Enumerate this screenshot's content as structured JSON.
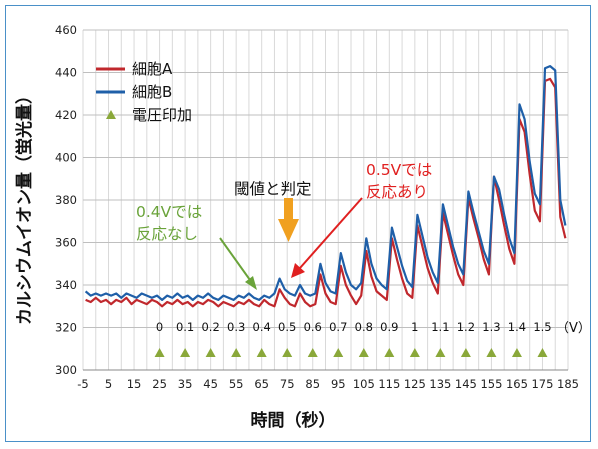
{
  "chart_data": {
    "type": "line",
    "title": "",
    "xlabel": "時間（秒）",
    "ylabel": "カルシウムイオン量（蛍光量）",
    "xlim": [
      -5,
      185
    ],
    "ylim": [
      300,
      460
    ],
    "grid": true,
    "legend_position": "top-left",
    "x_ticks": [
      "-5",
      "5",
      "15",
      "25",
      "35",
      "45",
      "55",
      "65",
      "75",
      "85",
      "95",
      "105",
      "115",
      "125",
      "135",
      "145",
      "155",
      "165",
      "175",
      "185"
    ],
    "y_ticks": [
      "300",
      "320",
      "340",
      "360",
      "380",
      "400",
      "420",
      "440",
      "460"
    ],
    "series": [
      {
        "name": "細胞A",
        "color": "#c0282d",
        "x": [
          -4,
          -2,
          0,
          2,
          4,
          6,
          8,
          10,
          12,
          14,
          16,
          18,
          20,
          22,
          24,
          26,
          28,
          30,
          32,
          34,
          36,
          38,
          40,
          42,
          44,
          46,
          48,
          50,
          52,
          54,
          56,
          58,
          60,
          62,
          64,
          66,
          68,
          70,
          72,
          74,
          76,
          78,
          80,
          82,
          84,
          86,
          88,
          90,
          92,
          94,
          96,
          98,
          100,
          102,
          104,
          106,
          108,
          110,
          112,
          114,
          116,
          118,
          120,
          122,
          124,
          126,
          128,
          130,
          132,
          134,
          136,
          138,
          140,
          142,
          144,
          146,
          148,
          150,
          152,
          154,
          156,
          158,
          160,
          162,
          164,
          166,
          168,
          170,
          172,
          174,
          176,
          178,
          180,
          182,
          184
        ],
        "y": [
          333,
          332,
          334,
          332,
          333,
          331,
          333,
          332,
          334,
          331,
          333,
          332,
          331,
          333,
          332,
          330,
          332,
          331,
          333,
          331,
          332,
          330,
          332,
          331,
          333,
          332,
          330,
          332,
          331,
          330,
          332,
          331,
          333,
          331,
          330,
          333,
          331,
          330,
          338,
          334,
          331,
          330,
          336,
          332,
          330,
          331,
          345,
          336,
          332,
          331,
          349,
          340,
          335,
          331,
          335,
          356,
          344,
          337,
          335,
          333,
          362,
          352,
          343,
          336,
          334,
          368,
          358,
          348,
          341,
          336,
          374,
          364,
          354,
          345,
          340,
          381,
          371,
          362,
          352,
          345,
          391,
          380,
          368,
          357,
          350,
          418,
          412,
          392,
          375,
          370,
          436,
          437,
          433,
          372,
          362
        ]
      },
      {
        "name": "細胞B",
        "color": "#1f5fa8",
        "x": [
          -4,
          -2,
          0,
          2,
          4,
          6,
          8,
          10,
          12,
          14,
          16,
          18,
          20,
          22,
          24,
          26,
          28,
          30,
          32,
          34,
          36,
          38,
          40,
          42,
          44,
          46,
          48,
          50,
          52,
          54,
          56,
          58,
          60,
          62,
          64,
          66,
          68,
          70,
          72,
          74,
          76,
          78,
          80,
          82,
          84,
          86,
          88,
          90,
          92,
          94,
          96,
          98,
          100,
          102,
          104,
          106,
          108,
          110,
          112,
          114,
          116,
          118,
          120,
          122,
          124,
          126,
          128,
          130,
          132,
          134,
          136,
          138,
          140,
          142,
          144,
          146,
          148,
          150,
          152,
          154,
          156,
          158,
          160,
          162,
          164,
          166,
          168,
          170,
          172,
          174,
          176,
          178,
          180,
          182,
          184
        ],
        "y": [
          337,
          335,
          336,
          335,
          336,
          335,
          336,
          334,
          336,
          335,
          334,
          336,
          335,
          334,
          335,
          333,
          335,
          334,
          336,
          334,
          335,
          333,
          335,
          334,
          336,
          334,
          333,
          335,
          334,
          333,
          335,
          334,
          336,
          334,
          333,
          335,
          334,
          336,
          343,
          338,
          336,
          335,
          340,
          336,
          335,
          336,
          350,
          341,
          337,
          336,
          355,
          346,
          340,
          338,
          341,
          362,
          350,
          343,
          340,
          338,
          367,
          358,
          349,
          342,
          339,
          373,
          363,
          353,
          346,
          341,
          378,
          368,
          358,
          350,
          345,
          384,
          374,
          365,
          356,
          350,
          391,
          385,
          373,
          362,
          355,
          425,
          418,
          398,
          383,
          378,
          442,
          443,
          441,
          380,
          368
        ]
      },
      {
        "name": "電圧印加",
        "color": "#8aa83a",
        "marker": "triangle",
        "x": [
          25,
          35,
          45,
          55,
          65,
          75,
          85,
          95,
          105,
          115,
          125,
          135,
          145,
          155,
          165,
          175
        ],
        "y": [
          308,
          308,
          308,
          308,
          308,
          308,
          308,
          308,
          308,
          308,
          308,
          308,
          308,
          308,
          308,
          308
        ]
      }
    ],
    "voltage_labels": [
      "0",
      "0.1",
      "0.2",
      "0.3",
      "0.4",
      "0.5",
      "0.6",
      "0.7",
      "0.8",
      "0.9",
      "1",
      "1.1",
      "1.2",
      "1.3",
      "1.4",
      "1.5"
    ],
    "voltage_x": [
      25,
      35,
      45,
      55,
      65,
      75,
      85,
      95,
      105,
      115,
      125,
      135,
      145,
      155,
      165,
      175
    ],
    "voltage_unit": "（V）",
    "annotations": {
      "threshold": "閾値と判定",
      "no_response": [
        "0.4Vでは",
        "反応なし"
      ],
      "response": [
        "0.5Vでは",
        "反応あり"
      ]
    },
    "colors": {
      "threshold_arrow": "#f0a020",
      "no_response": "#6aa33a",
      "response": "#e02020",
      "frame": "#4a90c8"
    }
  }
}
